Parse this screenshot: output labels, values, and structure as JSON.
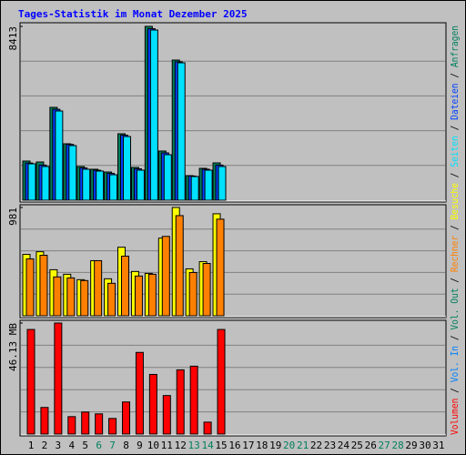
{
  "title": "Tages-Statistik im Monat Dezember 2025",
  "legend_separator": " / ",
  "categories": [
    "1",
    "2",
    "3",
    "4",
    "5",
    "6",
    "7",
    "8",
    "9",
    "10",
    "11",
    "12",
    "13",
    "14",
    "15",
    "16",
    "17",
    "18",
    "19",
    "20",
    "21",
    "22",
    "23",
    "24",
    "25",
    "26",
    "27",
    "28",
    "29",
    "30",
    "31"
  ],
  "category_colors": [
    "#000000",
    "#000000",
    "#000000",
    "#000000",
    "#000000",
    "#00805c",
    "#00805c",
    "#000000",
    "#000000",
    "#000000",
    "#000000",
    "#000000",
    "#00805c",
    "#00805c",
    "#000000",
    "#000000",
    "#000000",
    "#000000",
    "#000000",
    "#00805c",
    "#00805c",
    "#000000",
    "#000000",
    "#000000",
    "#000000",
    "#000000",
    "#00805c",
    "#00805c",
    "#000000",
    "#000000",
    "#000000"
  ],
  "chart_data": [
    {
      "type": "bar",
      "ylim": [
        0,
        8413
      ],
      "yticks": [
        8413
      ],
      "series": [
        {
          "name": "Anfragen",
          "color": "#00805c",
          "values": [
            1894,
            1850,
            4493,
            2731,
            1630,
            1498,
            1365,
            3215,
            1586,
            8413,
            2379,
            6783,
            1189,
            1542,
            1806,
            null,
            null,
            null,
            null,
            null,
            null,
            null,
            null,
            null,
            null,
            null,
            null,
            null,
            null,
            null,
            null
          ]
        },
        {
          "name": "Dateien",
          "color": "#0040ff",
          "values": [
            1800,
            1700,
            4400,
            2700,
            1560,
            1450,
            1300,
            3150,
            1520,
            8300,
            2290,
            6700,
            1170,
            1500,
            1700,
            null,
            null,
            null,
            null,
            null,
            null,
            null,
            null,
            null,
            null,
            null,
            null,
            null,
            null,
            null,
            null
          ]
        },
        {
          "name": "Seiten",
          "color": "#00e0ff",
          "values": [
            1762,
            1630,
            4317,
            2643,
            1498,
            1410,
            1233,
            3083,
            1454,
            8237,
            2202,
            6651,
            1145,
            1454,
            1630,
            null,
            null,
            null,
            null,
            null,
            null,
            null,
            null,
            null,
            null,
            null,
            null,
            null,
            null,
            null,
            null
          ]
        }
      ]
    },
    {
      "type": "bar",
      "ylim": [
        0,
        981
      ],
      "yticks": [
        981
      ],
      "series": [
        {
          "name": "Besuche",
          "color": "#ffff00",
          "values": [
            556,
            580,
            417,
            376,
            327,
            499,
            335,
            621,
            401,
            384,
            703,
            981,
            425,
            490,
            924,
            null,
            null,
            null,
            null,
            null,
            null,
            null,
            null,
            null,
            null,
            null,
            null,
            null,
            null,
            null,
            null
          ]
        },
        {
          "name": "Rechner",
          "color": "#ff8000",
          "values": [
            515,
            548,
            352,
            343,
            319,
            499,
            294,
            540,
            360,
            376,
            719,
            907,
            392,
            474,
            875,
            null,
            null,
            null,
            null,
            null,
            null,
            null,
            null,
            null,
            null,
            null,
            null,
            null,
            null,
            null,
            null
          ]
        }
      ]
    },
    {
      "type": "bar",
      "ylim": [
        0,
        46.13
      ],
      "yticks": [
        {
          "value": 46.13,
          "label": "46.13 MB"
        }
      ],
      "series": [
        {
          "name": "Volumen",
          "color": "#ff0000",
          "values": [
            43.46,
            11.06,
            46.13,
            7.24,
            9.15,
            8.39,
            6.48,
            13.34,
            33.93,
            24.78,
            16.01,
            26.69,
            28.21,
            4.96,
            43.46,
            null,
            null,
            null,
            null,
            null,
            null,
            null,
            null,
            null,
            null,
            null,
            null,
            null,
            null,
            null,
            null
          ]
        }
      ],
      "extra_legend": [
        {
          "name": "Vol. In",
          "color": "#0080ff"
        },
        {
          "name": "Vol. Out",
          "color": "#00805c"
        }
      ]
    }
  ]
}
